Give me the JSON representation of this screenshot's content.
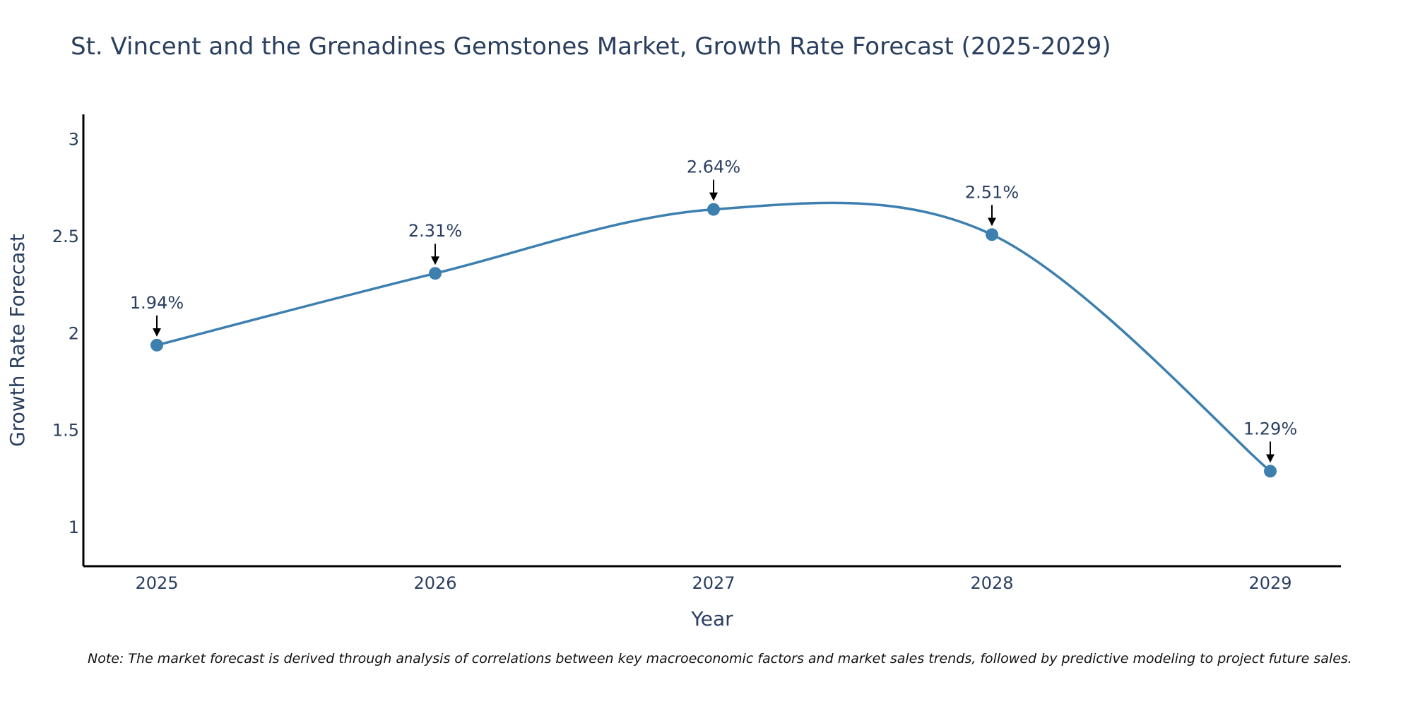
{
  "chart_data": {
    "type": "line",
    "title": "St. Vincent and the Grenadines Gemstones Market, Growth Rate Forecast (2025-2029)",
    "xlabel": "Year",
    "ylabel": "Growth Rate Forecast",
    "categories": [
      "2025",
      "2026",
      "2027",
      "2028",
      "2029"
    ],
    "series": [
      {
        "values": [
          1.94,
          2.31,
          2.64,
          2.51,
          1.29
        ],
        "labels": [
          "1.94%",
          "2.31%",
          "2.64%",
          "2.51%",
          "1.29%"
        ],
        "color": "#3d7fae"
      }
    ],
    "yticks": [
      "1",
      "1.5",
      "2",
      "2.5",
      "3"
    ],
    "ylim": [
      0.8,
      3.13
    ],
    "grid": false,
    "line_shape": "spline",
    "note": "Note: The market forecast is derived through analysis of correlations between key macroeconomic factors and market sales trends, followed by predictive modeling to project future sales."
  }
}
